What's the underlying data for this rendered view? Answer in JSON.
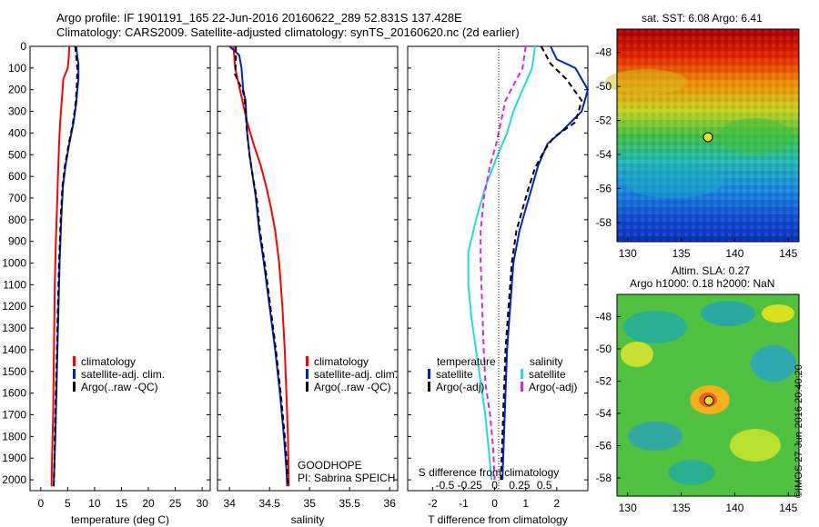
{
  "header": {
    "title_line1": "Argo profile: IF 1901191_165 22-Jun-2016 20160622_289 52.831S 137.428E",
    "title_line2": "Climatology: CARS2009. Satellite-adjusted climatology: synTS_20160620.nc (2d earlier)"
  },
  "legend": {
    "climatology": "climatology",
    "satellite_adj": "satellite-adj. clim.",
    "argo_raw": "Argo(..raw -QC)",
    "temperature": "temperature",
    "salinity": "salinity",
    "satellite": "satellite",
    "argo_adj": "Argo(-adj)"
  },
  "float_info": {
    "project": "GOODHOPE",
    "pi": "PI: Sabrina SPEICH"
  },
  "map_labels": {
    "sst_title": "sat. SST: 6.08 Argo: 6.41",
    "sla_title1": "Altim. SLA: 0.27",
    "sla_title2": "Argo h1000: 0.18 h2000: NaN",
    "stamp": "©IMOS 27-Jun-2016 20:40:20"
  },
  "colors": {
    "climatology": "#ff0000",
    "satellite_temp": "#0022cc",
    "argo": "#000000",
    "satellite_sal": "#22dddd",
    "argo_sal": "#dd22dd"
  },
  "chart_data": [
    {
      "type": "line",
      "xlabel": "temperature (deg C)",
      "ylabel": "",
      "xlim": [
        -2,
        31.5
      ],
      "ylim": [
        2050,
        0
      ],
      "x_ticks": [
        0,
        5,
        10,
        15,
        20,
        25,
        30
      ],
      "y_ticks": [
        0,
        100,
        200,
        300,
        400,
        500,
        600,
        700,
        800,
        900,
        1000,
        1100,
        1200,
        1300,
        1400,
        1500,
        1600,
        1700,
        1800,
        1900,
        2000
      ],
      "series": [
        {
          "name": "climatology",
          "color": "#ff0000",
          "dash": "",
          "points": [
            [
              5.3,
              0
            ],
            [
              5.2,
              50
            ],
            [
              5.0,
              100
            ],
            [
              4.2,
              150
            ],
            [
              3.9,
              250
            ],
            [
              3.6,
              350
            ],
            [
              3.4,
              450
            ],
            [
              3.2,
              600
            ],
            [
              3.0,
              750
            ],
            [
              2.8,
              900
            ],
            [
              2.6,
              1100
            ],
            [
              2.5,
              1300
            ],
            [
              2.4,
              1500
            ],
            [
              2.3,
              1700
            ],
            [
              2.1,
              1900
            ],
            [
              2.0,
              2030
            ]
          ]
        },
        {
          "name": "satellite-adj. clim.",
          "color": "#0022cc",
          "dash": "",
          "points": [
            [
              6.6,
              0
            ],
            [
              6.8,
              50
            ],
            [
              7.0,
              80
            ],
            [
              7.0,
              150
            ],
            [
              6.8,
              200
            ],
            [
              6.6,
              260
            ],
            [
              6.1,
              350
            ],
            [
              5.3,
              450
            ],
            [
              4.6,
              550
            ],
            [
              4.1,
              650
            ],
            [
              3.8,
              800
            ],
            [
              3.5,
              1000
            ],
            [
              3.3,
              1200
            ],
            [
              3.1,
              1400
            ],
            [
              2.9,
              1600
            ],
            [
              2.7,
              1800
            ],
            [
              2.5,
              1950
            ],
            [
              2.4,
              2030
            ]
          ]
        },
        {
          "name": "Argo(..raw -QC)",
          "color": "#000000",
          "dash": "6,4",
          "points": [
            [
              6.4,
              0
            ],
            [
              6.6,
              50
            ],
            [
              6.8,
              100
            ],
            [
              6.7,
              180
            ],
            [
              6.5,
              260
            ],
            [
              6.0,
              350
            ],
            [
              5.2,
              450
            ],
            [
              4.5,
              550
            ],
            [
              4.0,
              650
            ],
            [
              3.7,
              800
            ],
            [
              3.4,
              1000
            ],
            [
              3.2,
              1200
            ],
            [
              3.0,
              1400
            ],
            [
              2.8,
              1600
            ],
            [
              2.6,
              1800
            ],
            [
              2.5,
              1950
            ],
            [
              2.4,
              2030
            ]
          ]
        }
      ]
    },
    {
      "type": "line",
      "xlabel": "salinity",
      "ylabel": "",
      "xlim": [
        33.85,
        36.1
      ],
      "ylim": [
        2050,
        0
      ],
      "x_ticks": [
        34,
        34.5,
        35,
        35.5,
        36
      ],
      "series": [
        {
          "name": "climatology",
          "color": "#ff0000",
          "dash": "",
          "points": [
            [
              34.05,
              0
            ],
            [
              34.07,
              100
            ],
            [
              34.1,
              150
            ],
            [
              34.16,
              250
            ],
            [
              34.22,
              350
            ],
            [
              34.3,
              450
            ],
            [
              34.39,
              550
            ],
            [
              34.46,
              650
            ],
            [
              34.52,
              750
            ],
            [
              34.57,
              850
            ],
            [
              34.62,
              1000
            ],
            [
              34.66,
              1200
            ],
            [
              34.69,
              1400
            ],
            [
              34.71,
              1600
            ],
            [
              34.73,
              1800
            ],
            [
              34.74,
              2000
            ],
            [
              34.74,
              2030
            ]
          ]
        },
        {
          "name": "satellite-adj. clim.",
          "color": "#0022cc",
          "dash": "",
          "points": [
            [
              34.0,
              0
            ],
            [
              34.12,
              40
            ],
            [
              34.15,
              100
            ],
            [
              34.17,
              200
            ],
            [
              34.2,
              250
            ],
            [
              34.22,
              400
            ],
            [
              34.25,
              500
            ],
            [
              34.29,
              600
            ],
            [
              34.33,
              700
            ],
            [
              34.37,
              850
            ],
            [
              34.43,
              1000
            ],
            [
              34.5,
              1200
            ],
            [
              34.57,
              1400
            ],
            [
              34.63,
              1600
            ],
            [
              34.68,
              1800
            ],
            [
              34.71,
              1950
            ],
            [
              34.72,
              2030
            ]
          ]
        },
        {
          "name": "Argo(..raw -QC)",
          "color": "#000000",
          "dash": "6,4",
          "points": [
            [
              34.08,
              0
            ],
            [
              34.08,
              70
            ],
            [
              34.07,
              130
            ],
            [
              34.17,
              210
            ],
            [
              34.19,
              250
            ],
            [
              34.22,
              400
            ],
            [
              34.25,
              500
            ],
            [
              34.29,
              600
            ],
            [
              34.34,
              700
            ],
            [
              34.38,
              850
            ],
            [
              34.44,
              1000
            ],
            [
              34.51,
              1200
            ],
            [
              34.58,
              1400
            ],
            [
              34.64,
              1600
            ],
            [
              34.69,
              1800
            ],
            [
              34.72,
              1950
            ],
            [
              34.73,
              2030
            ]
          ]
        }
      ]
    },
    {
      "type": "line",
      "xlabel": "T difference from climatology",
      "xlabel_top": "S difference from climatology",
      "xlim": [
        -2.8,
        3.0
      ],
      "ylim": [
        2050,
        0
      ],
      "x_ticks": [
        -2,
        -1,
        0,
        1,
        2
      ],
      "x2_ticks_labels": [
        "-0.5",
        "-0.25",
        "0",
        "0.25",
        "0.5"
      ],
      "x2_ticks_values": [
        -1.6,
        -0.8,
        0,
        0.8,
        1.6
      ],
      "series": [
        {
          "name": "satellite",
          "group": "temperature",
          "color": "#0022cc",
          "dash": "",
          "points": [
            [
              1.8,
              0
            ],
            [
              2.0,
              60
            ],
            [
              2.6,
              100
            ],
            [
              3.0,
              200
            ],
            [
              2.8,
              300
            ],
            [
              2.1,
              400
            ],
            [
              1.7,
              450
            ],
            [
              1.4,
              550
            ],
            [
              1.2,
              650
            ],
            [
              1.0,
              750
            ],
            [
              0.8,
              850
            ],
            [
              0.6,
              1000
            ],
            [
              0.5,
              1200
            ],
            [
              0.4,
              1400
            ],
            [
              0.35,
              1600
            ],
            [
              0.3,
              1800
            ],
            [
              0.25,
              2000
            ]
          ]
        },
        {
          "name": "Argo(-adj)",
          "group": "temperature",
          "color": "#000000",
          "dash": "6,4",
          "points": [
            [
              1.5,
              0
            ],
            [
              1.8,
              80
            ],
            [
              2.3,
              150
            ],
            [
              2.8,
              250
            ],
            [
              2.6,
              350
            ],
            [
              1.9,
              420
            ],
            [
              1.6,
              480
            ],
            [
              1.3,
              560
            ],
            [
              1.1,
              650
            ],
            [
              0.9,
              750
            ],
            [
              0.7,
              850
            ],
            [
              0.55,
              1000
            ],
            [
              0.45,
              1200
            ],
            [
              0.35,
              1400
            ],
            [
              0.3,
              1600
            ],
            [
              0.25,
              1800
            ],
            [
              0.2,
              2000
            ]
          ]
        },
        {
          "name": "satellite",
          "group": "salinity",
          "color": "#22dddd",
          "dash": "",
          "points": [
            [
              1.3,
              0
            ],
            [
              1.2,
              100
            ],
            [
              0.9,
              200
            ],
            [
              0.6,
              300
            ],
            [
              0.4,
              400
            ],
            [
              0.1,
              500
            ],
            [
              -0.3,
              650
            ],
            [
              -0.6,
              800
            ],
            [
              -0.85,
              950
            ],
            [
              -0.85,
              1100
            ],
            [
              -0.75,
              1250
            ],
            [
              -0.6,
              1400
            ],
            [
              -0.45,
              1550
            ],
            [
              -0.3,
              1700
            ],
            [
              -0.2,
              1850
            ],
            [
              -0.1,
              2000
            ]
          ]
        },
        {
          "name": "Argo(-adj)",
          "group": "salinity",
          "color": "#dd22dd",
          "dash": "6,4",
          "points": [
            [
              1.0,
              0
            ],
            [
              0.9,
              100
            ],
            [
              0.6,
              180
            ],
            [
              0.35,
              250
            ],
            [
              0.2,
              350
            ],
            [
              0.05,
              450
            ],
            [
              -0.15,
              550
            ],
            [
              -0.35,
              700
            ],
            [
              -0.45,
              850
            ],
            [
              -0.45,
              1000
            ],
            [
              -0.4,
              1200
            ],
            [
              -0.35,
              1400
            ],
            [
              -0.3,
              1550
            ],
            [
              -0.15,
              1700
            ],
            [
              -0.05,
              1850
            ],
            [
              0.0,
              2000
            ]
          ]
        }
      ]
    }
  ]
}
